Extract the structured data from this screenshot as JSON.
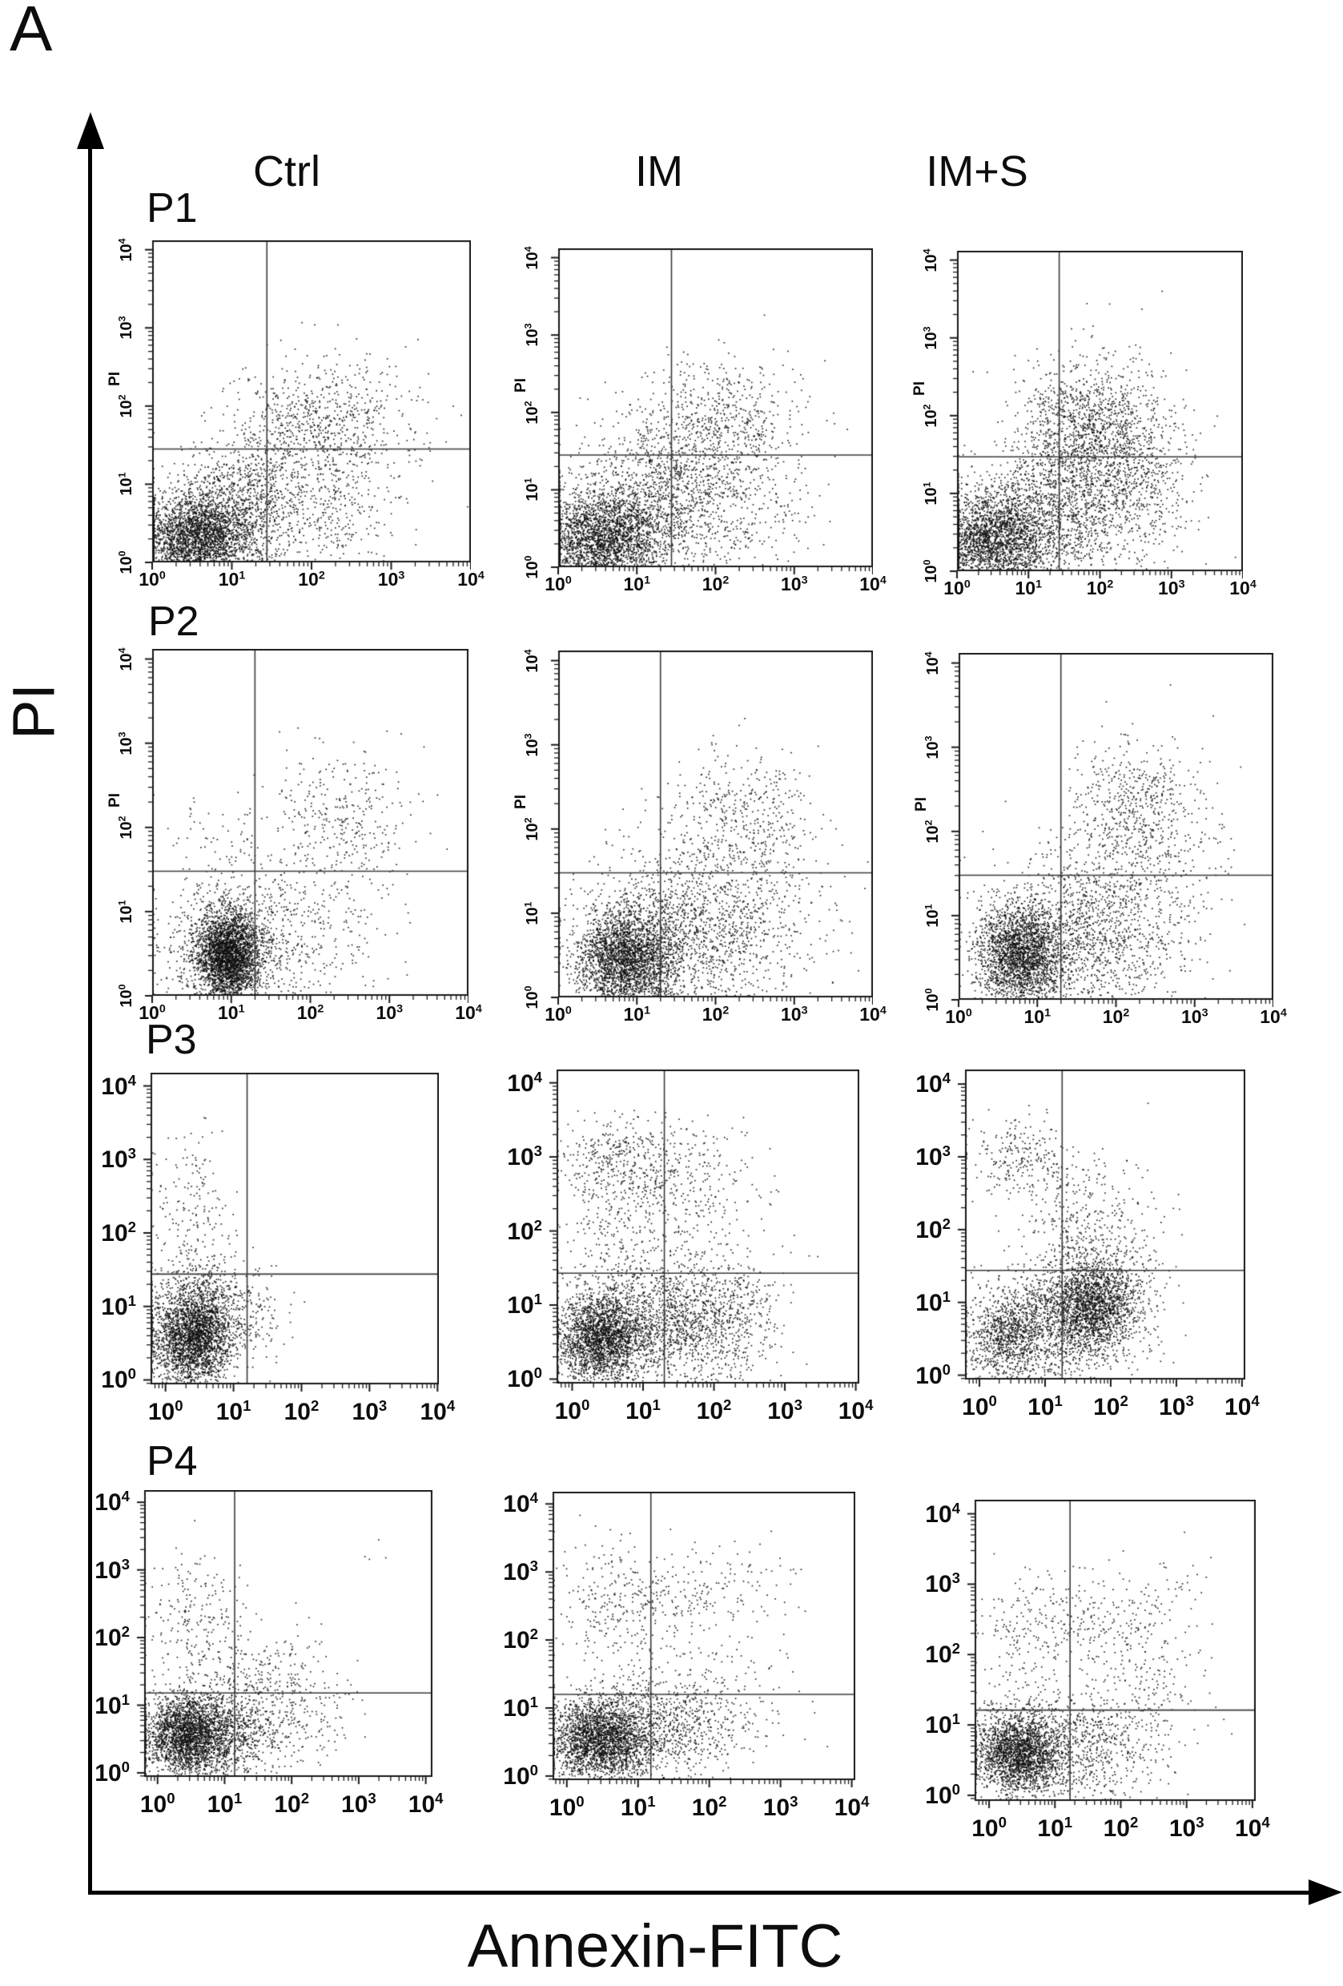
{
  "figure": {
    "panel_label": "A",
    "x_axis_title": "Annexin-FITC",
    "y_axis_title": "PI",
    "column_headers": [
      "Ctrl",
      "IM",
      "IM+S"
    ],
    "row_labels": [
      "P1",
      "P2",
      "P3",
      "P4"
    ],
    "inline_y_axis_label": "PI",
    "tick_base": "10",
    "dot_color": "#141414",
    "frame_color": "#1a1a1a",
    "gate_line_color": "#3a3a3a"
  },
  "chart_data": [
    {
      "id": "P1-Ctrl",
      "row": "P1",
      "condition": "Ctrl",
      "type": "scatter",
      "xlabel": "Annexin-FITC",
      "ylabel": "PI",
      "x_scale": "log10",
      "y_scale": "log10",
      "x_range_decades": [
        0,
        4
      ],
      "y_range_decades": [
        0,
        4
      ],
      "tick_exponents": [
        0,
        1,
        2,
        3,
        4
      ],
      "gate_x_log10": 1.44,
      "gate_y_log10": 1.45,
      "clusters": [
        {
          "cx": 0.55,
          "cy": 0.32,
          "sx": 0.38,
          "sy": 0.27,
          "n": 2600
        },
        {
          "cx": 1.05,
          "cy": 0.75,
          "sx": 0.45,
          "sy": 0.4,
          "n": 900
        },
        {
          "cx": 2.05,
          "cy": 0.75,
          "sx": 0.55,
          "sy": 0.45,
          "n": 420
        },
        {
          "cx": 2.15,
          "cy": 1.9,
          "sx": 0.45,
          "sy": 0.38,
          "n": 430
        },
        {
          "cx": 1.55,
          "cy": 1.55,
          "sx": 0.45,
          "sy": 0.4,
          "n": 260
        },
        {
          "cx": 2.8,
          "cy": 1.6,
          "sx": 0.5,
          "sy": 0.5,
          "n": 120
        }
      ]
    },
    {
      "id": "P1-IM",
      "row": "P1",
      "condition": "IM",
      "type": "scatter",
      "xlabel": "Annexin-FITC",
      "ylabel": "PI",
      "x_scale": "log10",
      "y_scale": "log10",
      "x_range_decades": [
        0,
        4
      ],
      "y_range_decades": [
        0,
        4
      ],
      "tick_exponents": [
        0,
        1,
        2,
        3,
        4
      ],
      "gate_x_log10": 1.44,
      "gate_y_log10": 1.45,
      "clusters": [
        {
          "cx": 0.52,
          "cy": 0.35,
          "sx": 0.4,
          "sy": 0.3,
          "n": 2500
        },
        {
          "cx": 1.1,
          "cy": 0.8,
          "sx": 0.5,
          "sy": 0.42,
          "n": 950
        },
        {
          "cx": 2.2,
          "cy": 0.8,
          "sx": 0.55,
          "sy": 0.5,
          "n": 420
        },
        {
          "cx": 2.1,
          "cy": 1.9,
          "sx": 0.5,
          "sy": 0.42,
          "n": 520
        },
        {
          "cx": 1.6,
          "cy": 1.5,
          "sx": 0.5,
          "sy": 0.42,
          "n": 300
        }
      ]
    },
    {
      "id": "P1-IM+S",
      "row": "P1",
      "condition": "IM+S",
      "type": "scatter",
      "xlabel": "Annexin-FITC",
      "ylabel": "PI",
      "x_scale": "log10",
      "y_scale": "log10",
      "x_range_decades": [
        0,
        4
      ],
      "y_range_decades": [
        0,
        4
      ],
      "tick_exponents": [
        0,
        1,
        2,
        3,
        4
      ],
      "gate_x_log10": 1.43,
      "gate_y_log10": 1.47,
      "clusters": [
        {
          "cx": 0.45,
          "cy": 0.4,
          "sx": 0.38,
          "sy": 0.3,
          "n": 1900
        },
        {
          "cx": 0.9,
          "cy": 0.6,
          "sx": 0.5,
          "sy": 0.4,
          "n": 900
        },
        {
          "cx": 1.8,
          "cy": 1.0,
          "sx": 0.5,
          "sy": 0.5,
          "n": 1100
        },
        {
          "cx": 2.0,
          "cy": 1.9,
          "sx": 0.5,
          "sy": 0.45,
          "n": 800
        },
        {
          "cx": 2.6,
          "cy": 1.2,
          "sx": 0.4,
          "sy": 0.5,
          "n": 300
        },
        {
          "cx": 1.5,
          "cy": 1.9,
          "sx": 0.35,
          "sy": 0.4,
          "n": 300
        }
      ]
    },
    {
      "id": "P2-Ctrl",
      "row": "P2",
      "condition": "Ctrl",
      "type": "scatter",
      "xlabel": "Annexin-FITC",
      "ylabel": "PI",
      "x_scale": "log10",
      "y_scale": "log10",
      "x_range_decades": [
        0,
        4
      ],
      "y_range_decades": [
        0,
        4
      ],
      "tick_exponents": [
        0,
        1,
        2,
        3,
        4
      ],
      "gate_x_log10": 1.3,
      "gate_y_log10": 1.48,
      "clusters": [
        {
          "cx": 0.95,
          "cy": 0.48,
          "sx": 0.2,
          "sy": 0.26,
          "n": 2800
        },
        {
          "cx": 1.0,
          "cy": 0.55,
          "sx": 0.45,
          "sy": 0.4,
          "n": 800
        },
        {
          "cx": 1.9,
          "cy": 0.9,
          "sx": 0.55,
          "sy": 0.5,
          "n": 350
        },
        {
          "cx": 2.35,
          "cy": 2.2,
          "sx": 0.45,
          "sy": 0.38,
          "n": 300
        },
        {
          "cx": 0.85,
          "cy": 1.8,
          "sx": 0.35,
          "sy": 0.35,
          "n": 70
        }
      ]
    },
    {
      "id": "P2-IM",
      "row": "P2",
      "condition": "IM",
      "type": "scatter",
      "xlabel": "Annexin-FITC",
      "ylabel": "PI",
      "x_scale": "log10",
      "y_scale": "log10",
      "x_range_decades": [
        0,
        4
      ],
      "y_range_decades": [
        0,
        4
      ],
      "tick_exponents": [
        0,
        1,
        2,
        3,
        4
      ],
      "gate_x_log10": 1.3,
      "gate_y_log10": 1.48,
      "clusters": [
        {
          "cx": 0.85,
          "cy": 0.45,
          "sx": 0.32,
          "sy": 0.3,
          "n": 2600
        },
        {
          "cx": 1.5,
          "cy": 0.7,
          "sx": 0.6,
          "sy": 0.45,
          "n": 1000
        },
        {
          "cx": 2.3,
          "cy": 2.2,
          "sx": 0.45,
          "sy": 0.4,
          "n": 380
        },
        {
          "cx": 1.9,
          "cy": 1.2,
          "sx": 0.6,
          "sy": 0.5,
          "n": 420
        },
        {
          "cx": 2.5,
          "cy": 0.9,
          "sx": 0.5,
          "sy": 0.5,
          "n": 250
        }
      ]
    },
    {
      "id": "P2-IM+S",
      "row": "P2",
      "condition": "IM+S",
      "type": "scatter",
      "xlabel": "Annexin-FITC",
      "ylabel": "PI",
      "x_scale": "log10",
      "y_scale": "log10",
      "x_range_decades": [
        0,
        4
      ],
      "y_range_decades": [
        0,
        4
      ],
      "tick_exponents": [
        0,
        1,
        2,
        3,
        4
      ],
      "gate_x_log10": 1.3,
      "gate_y_log10": 1.48,
      "clusters": [
        {
          "cx": 0.8,
          "cy": 0.55,
          "sx": 0.28,
          "sy": 0.3,
          "n": 2300
        },
        {
          "cx": 1.7,
          "cy": 0.65,
          "sx": 0.6,
          "sy": 0.45,
          "n": 950
        },
        {
          "cx": 2.2,
          "cy": 2.3,
          "sx": 0.42,
          "sy": 0.38,
          "n": 550
        },
        {
          "cx": 1.7,
          "cy": 1.2,
          "sx": 0.55,
          "sy": 0.45,
          "n": 400
        },
        {
          "cx": 2.6,
          "cy": 1.5,
          "sx": 0.4,
          "sy": 0.5,
          "n": 150
        }
      ]
    },
    {
      "id": "P3-Ctrl",
      "row": "P3",
      "condition": "Ctrl",
      "type": "scatter",
      "xlabel": "Annexin-FITC",
      "ylabel": "PI",
      "x_scale": "log10",
      "y_scale": "log10",
      "x_range_decades": [
        0,
        4
      ],
      "y_range_decades": [
        0,
        4
      ],
      "tick_exponents": [
        0,
        1,
        2,
        3,
        4
      ],
      "gate_x_log10": 1.2,
      "gate_y_log10": 1.44,
      "clusters": [
        {
          "cx": 0.4,
          "cy": 0.6,
          "sx": 0.3,
          "sy": 0.33,
          "n": 2600
        },
        {
          "cx": 0.55,
          "cy": 1.05,
          "sx": 0.4,
          "sy": 0.35,
          "n": 450
        },
        {
          "cx": 0.35,
          "cy": 2.3,
          "sx": 0.3,
          "sy": 0.55,
          "n": 170
        },
        {
          "cx": 1.35,
          "cy": 0.85,
          "sx": 0.25,
          "sy": 0.35,
          "n": 90
        }
      ]
    },
    {
      "id": "P3-IM",
      "row": "P3",
      "condition": "IM",
      "type": "scatter",
      "xlabel": "Annexin-FITC",
      "ylabel": "PI",
      "x_scale": "log10",
      "y_scale": "log10",
      "x_range_decades": [
        0,
        4
      ],
      "y_range_decades": [
        0,
        4
      ],
      "tick_exponents": [
        0,
        1,
        2,
        3,
        4
      ],
      "gate_x_log10": 1.3,
      "gate_y_log10": 1.43,
      "clusters": [
        {
          "cx": 0.38,
          "cy": 0.55,
          "sx": 0.28,
          "sy": 0.3,
          "n": 2100
        },
        {
          "cx": 1.3,
          "cy": 0.75,
          "sx": 0.55,
          "sy": 0.42,
          "n": 1400
        },
        {
          "cx": 2.2,
          "cy": 0.9,
          "sx": 0.4,
          "sy": 0.45,
          "n": 400
        },
        {
          "cx": 0.8,
          "cy": 2.95,
          "sx": 0.5,
          "sy": 0.3,
          "n": 420
        },
        {
          "cx": 0.7,
          "cy": 2.0,
          "sx": 0.45,
          "sy": 0.5,
          "n": 260
        },
        {
          "cx": 1.8,
          "cy": 2.5,
          "sx": 0.5,
          "sy": 0.45,
          "n": 220
        }
      ]
    },
    {
      "id": "P3-IM+S",
      "row": "P3",
      "condition": "IM+S",
      "type": "scatter",
      "xlabel": "Annexin-FITC",
      "ylabel": "PI",
      "x_scale": "log10",
      "y_scale": "log10",
      "x_range_decades": [
        0,
        4
      ],
      "y_range_decades": [
        0,
        4
      ],
      "tick_exponents": [
        0,
        1,
        2,
        3,
        4
      ],
      "gate_x_log10": 1.26,
      "gate_y_log10": 1.44,
      "clusters": [
        {
          "cx": 1.7,
          "cy": 0.95,
          "sx": 0.33,
          "sy": 0.33,
          "n": 1800
        },
        {
          "cx": 0.45,
          "cy": 0.55,
          "sx": 0.33,
          "sy": 0.33,
          "n": 950
        },
        {
          "cx": 1.1,
          "cy": 0.75,
          "sx": 0.5,
          "sy": 0.42,
          "n": 700
        },
        {
          "cx": 0.6,
          "cy": 3.0,
          "sx": 0.42,
          "sy": 0.3,
          "n": 240
        },
        {
          "cx": 1.55,
          "cy": 2.1,
          "sx": 0.5,
          "sy": 0.55,
          "n": 380
        },
        {
          "cx": 2.25,
          "cy": 1.2,
          "sx": 0.35,
          "sy": 0.5,
          "n": 260
        }
      ]
    },
    {
      "id": "P4-Ctrl",
      "row": "P4",
      "condition": "Ctrl",
      "type": "scatter",
      "xlabel": "Annexin-FITC",
      "ylabel": "PI",
      "x_scale": "log10",
      "y_scale": "log10",
      "x_range_decades": [
        0,
        4
      ],
      "y_range_decades": [
        0,
        4
      ],
      "tick_exponents": [
        0,
        1,
        2,
        3,
        4
      ],
      "gate_x_log10": 1.15,
      "gate_y_log10": 1.18,
      "clusters": [
        {
          "cx": 0.45,
          "cy": 0.55,
          "sx": 0.33,
          "sy": 0.3,
          "n": 2400
        },
        {
          "cx": 1.05,
          "cy": 0.65,
          "sx": 0.5,
          "sy": 0.38,
          "n": 800
        },
        {
          "cx": 0.55,
          "cy": 2.35,
          "sx": 0.35,
          "sy": 0.5,
          "n": 190
        },
        {
          "cx": 1.45,
          "cy": 1.5,
          "sx": 0.5,
          "sy": 0.45,
          "n": 200
        },
        {
          "cx": 2.0,
          "cy": 0.95,
          "sx": 0.5,
          "sy": 0.45,
          "n": 170
        },
        {
          "cx": 3.3,
          "cy": 3.2,
          "sx": 0.15,
          "sy": 0.12,
          "n": 4
        }
      ]
    },
    {
      "id": "P4-IM",
      "row": "P4",
      "condition": "IM",
      "type": "scatter",
      "xlabel": "Annexin-FITC",
      "ylabel": "PI",
      "x_scale": "log10",
      "y_scale": "log10",
      "x_range_decades": [
        0,
        4
      ],
      "y_range_decades": [
        0,
        4
      ],
      "tick_exponents": [
        0,
        1,
        2,
        3,
        4
      ],
      "gate_x_log10": 1.18,
      "gate_y_log10": 1.2,
      "clusters": [
        {
          "cx": 0.45,
          "cy": 0.55,
          "sx": 0.33,
          "sy": 0.3,
          "n": 2300
        },
        {
          "cx": 1.15,
          "cy": 0.68,
          "sx": 0.55,
          "sy": 0.4,
          "n": 850
        },
        {
          "cx": 0.7,
          "cy": 2.5,
          "sx": 0.45,
          "sy": 0.45,
          "n": 230
        },
        {
          "cx": 1.6,
          "cy": 2.6,
          "sx": 0.5,
          "sy": 0.4,
          "n": 160
        },
        {
          "cx": 2.0,
          "cy": 1.0,
          "sx": 0.55,
          "sy": 0.5,
          "n": 260
        },
        {
          "cx": 2.5,
          "cy": 2.9,
          "sx": 0.4,
          "sy": 0.3,
          "n": 60
        }
      ]
    },
    {
      "id": "P4-IM+S",
      "row": "P4",
      "condition": "IM+S",
      "type": "scatter",
      "xlabel": "Annexin-FITC",
      "ylabel": "PI",
      "x_scale": "log10",
      "y_scale": "log10",
      "x_range_decades": [
        0,
        4
      ],
      "y_range_decades": [
        0,
        4
      ],
      "tick_exponents": [
        0,
        1,
        2,
        3,
        4
      ],
      "gate_x_log10": 1.23,
      "gate_y_log10": 1.21,
      "clusters": [
        {
          "cx": 0.45,
          "cy": 0.6,
          "sx": 0.33,
          "sy": 0.3,
          "n": 2200
        },
        {
          "cx": 1.4,
          "cy": 0.7,
          "sx": 0.55,
          "sy": 0.42,
          "n": 750
        },
        {
          "cx": 1.5,
          "cy": 2.5,
          "sx": 0.75,
          "sy": 0.35,
          "n": 280
        },
        {
          "cx": 0.6,
          "cy": 2.1,
          "sx": 0.4,
          "sy": 0.5,
          "n": 120
        },
        {
          "cx": 2.5,
          "cy": 1.4,
          "sx": 0.45,
          "sy": 0.6,
          "n": 160
        },
        {
          "cx": 2.9,
          "cy": 3.1,
          "sx": 0.3,
          "sy": 0.25,
          "n": 18
        }
      ]
    }
  ]
}
